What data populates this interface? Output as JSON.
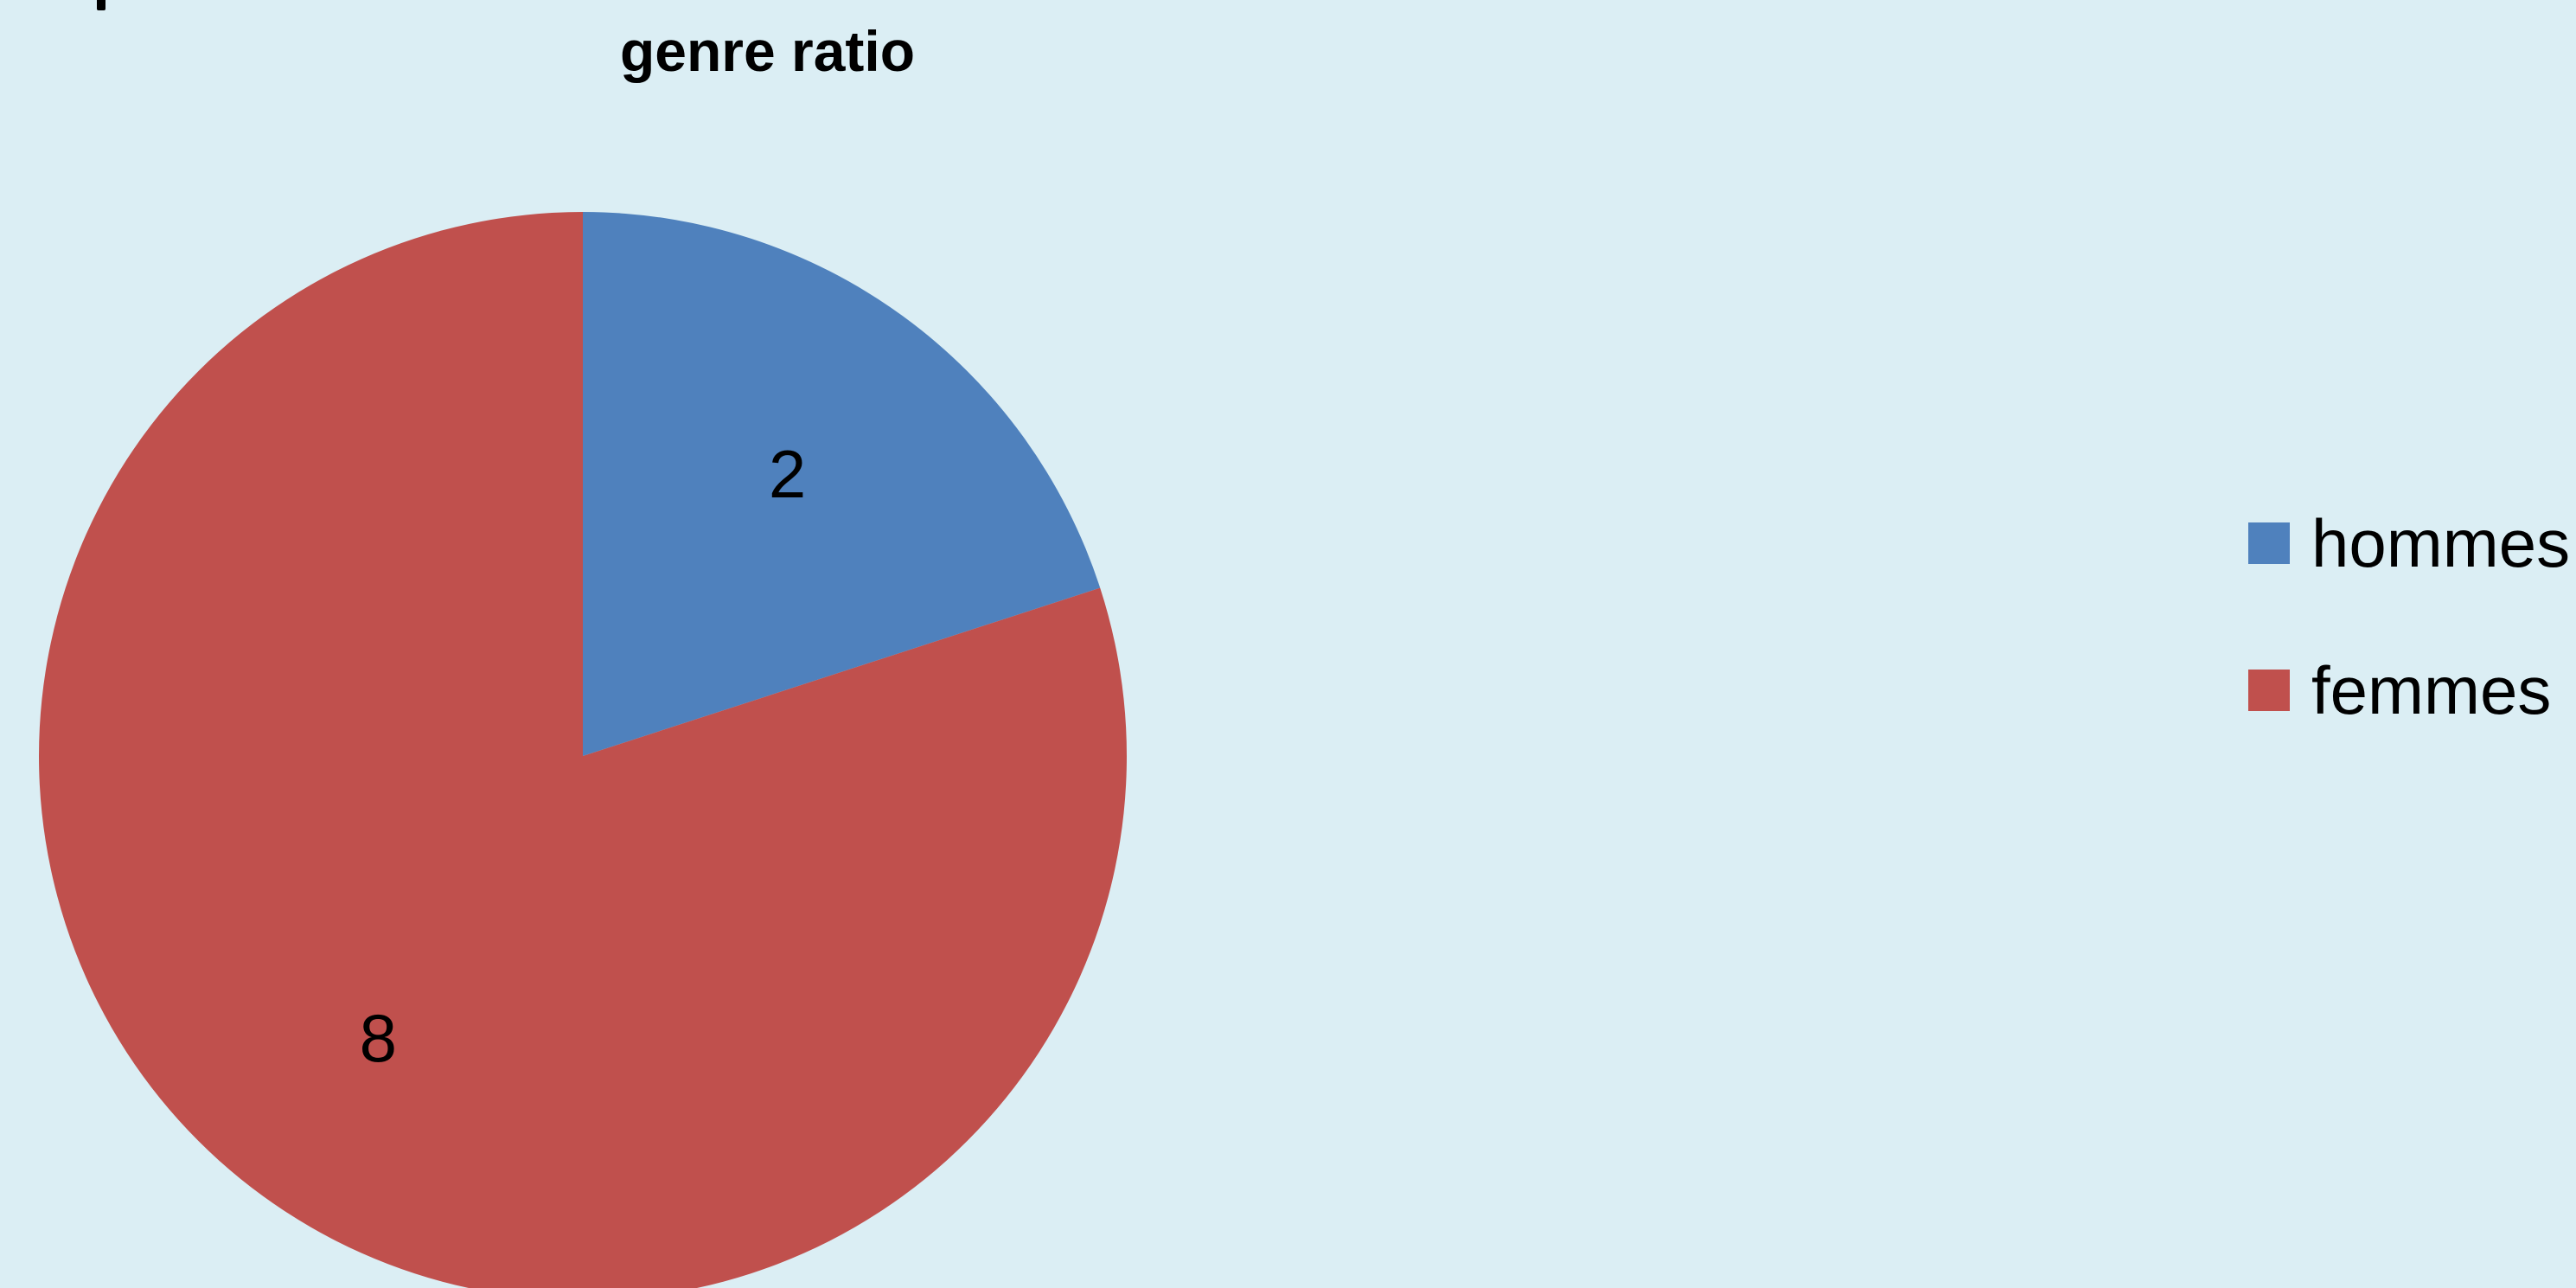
{
  "chart_data": {
    "type": "pie",
    "title": "genre ratio",
    "categories": [
      "hommes",
      "femmes"
    ],
    "values": [
      2,
      8
    ],
    "data_labels": [
      "2",
      "8"
    ],
    "colors": [
      "#4f81bd",
      "#c0504d"
    ],
    "legend_position": "right",
    "start_angle_degrees": 0,
    "direction": "clockwise"
  },
  "background_color": "#dbeef4"
}
